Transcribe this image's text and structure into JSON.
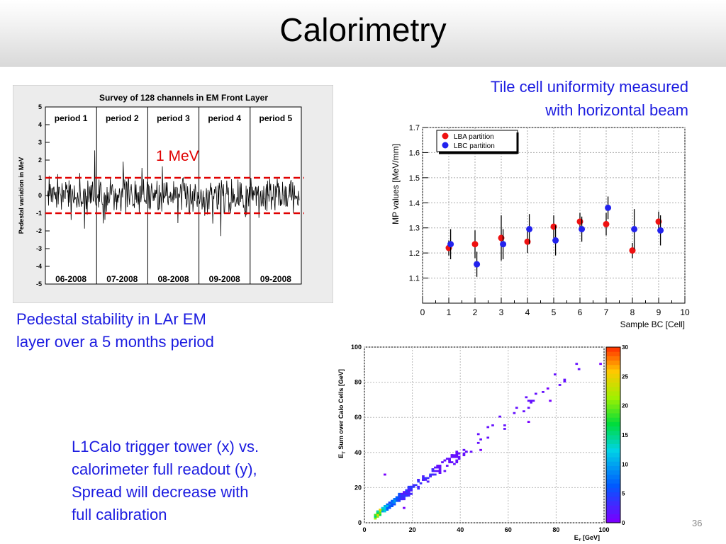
{
  "slide": {
    "title": "Calorimetry",
    "page_number": "36",
    "caption_tile": [
      "Tile cell uniformity measured",
      "with horizontal beam"
    ],
    "caption_pedestal": [
      "Pedestal stability in LAr EM",
      "layer over a 5 months period"
    ],
    "caption_l1calo": [
      "L1Calo trigger tower (x)  vs.",
      "calorimeter full readout (y),",
      "Spread will decrease with",
      "full calibration"
    ]
  },
  "chart_data": [
    {
      "type": "line",
      "title": "Survey of 128 channels in EM Front Layer",
      "ylabel": "Pedestal variation in MeV",
      "ylim": [
        -5,
        5
      ],
      "yticks": [
        "5",
        "4",
        "3",
        "2",
        "1",
        "0",
        "-1",
        "-2",
        "-3",
        "-4",
        "-5"
      ],
      "periods": [
        "period 1",
        "period 2",
        "period 3",
        "period 4",
        "period 5"
      ],
      "dates": [
        "06-2008",
        "07-2008",
        "08-2008",
        "09-2008",
        "09-2008"
      ],
      "annotation": "1 MeV",
      "band": [
        -1,
        1
      ],
      "n_samples": 470,
      "colors": {
        "line": "#000000",
        "band": "#e00000",
        "annotation": "#e00000"
      }
    },
    {
      "type": "scatter",
      "xlabel": "Sample BC [Cell]",
      "ylabel": "MP values [MeV/mm]",
      "xlim": [
        0,
        10
      ],
      "ylim": [
        1.0,
        1.7
      ],
      "xticks": [
        "0",
        "1",
        "2",
        "3",
        "4",
        "5",
        "6",
        "7",
        "8",
        "9",
        "10"
      ],
      "yticks": [
        "1.1",
        "1.2",
        "1.3",
        "1.4",
        "1.5",
        "1.6",
        "1.7"
      ],
      "grid": true,
      "legend_position": "top-left",
      "series": [
        {
          "name": "LBA partition",
          "color": "#ee1111",
          "x": [
            1,
            2,
            3,
            4,
            5,
            6,
            7,
            8,
            9
          ],
          "y": [
            1.22,
            1.235,
            1.26,
            1.245,
            1.305,
            1.325,
            1.315,
            1.21,
            1.325
          ],
          "err": [
            0.03,
            0.055,
            0.09,
            0.045,
            0.045,
            0.035,
            0.045,
            0.03,
            0.04
          ]
        },
        {
          "name": "LBC partition",
          "color": "#2222ee",
          "x": [
            1.07,
            2.07,
            3.07,
            4.07,
            5.07,
            6.07,
            7.07,
            8.07,
            9.07
          ],
          "y": [
            1.235,
            1.155,
            1.235,
            1.295,
            1.25,
            1.295,
            1.38,
            1.295,
            1.29
          ],
          "err": [
            0.06,
            0.05,
            0.06,
            0.06,
            0.06,
            0.05,
            0.045,
            0.08,
            0.06
          ]
        }
      ]
    },
    {
      "type": "heatmap",
      "xlabel": "E",
      "xlabel_sub": "T",
      "xlabel_unit": "[GeV]",
      "ylabel_prefix": "E",
      "ylabel_sub": "T",
      "ylabel_rest": "Sum over Calo Cells [GeV]",
      "xlim": [
        0,
        100
      ],
      "ylim": [
        0,
        100
      ],
      "xticks": [
        "0",
        "20",
        "40",
        "60",
        "80",
        "100"
      ],
      "yticks": [
        "0",
        "20",
        "40",
        "60",
        "80",
        "100"
      ],
      "zlim": [
        0,
        30
      ],
      "zticks": [
        "0",
        "5",
        "10",
        "15",
        "20",
        "25",
        "30"
      ],
      "grid": true,
      "trend_slope": 1.0
    }
  ]
}
